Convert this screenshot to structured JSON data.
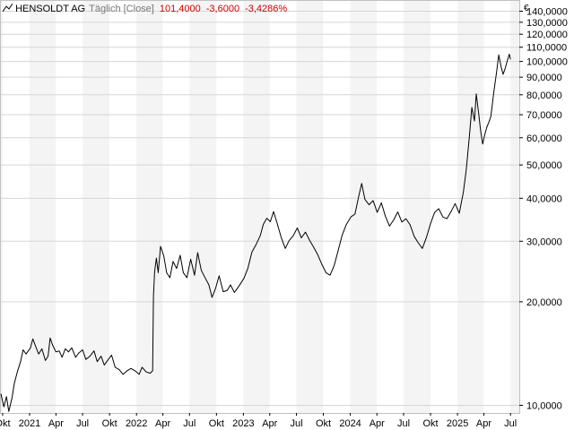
{
  "header": {
    "icon": "line-chart-icon",
    "instrument": "HENSOLDT AG",
    "subtitle": "Täglich [Close]",
    "last": "101,4000",
    "change": "-3,6000",
    "change_pct": "-3,4286%",
    "currency": "€",
    "change_color": "#cc0000"
  },
  "chart_data": {
    "type": "line",
    "title": "HENSOLDT AG",
    "yscale": "log",
    "ylim": [
      9.5,
      150
    ],
    "xlim": [
      "2020-09-25",
      "2025-07-31"
    ],
    "grid": true,
    "y_ticks": [
      {
        "v": 10,
        "label": "10,0000"
      },
      {
        "v": 20,
        "label": "20,0000"
      },
      {
        "v": 30,
        "label": "30,0000"
      },
      {
        "v": 40,
        "label": "40,0000"
      },
      {
        "v": 50,
        "label": "50,0000"
      },
      {
        "v": 60,
        "label": "60,0000"
      },
      {
        "v": 70,
        "label": "70,0000"
      },
      {
        "v": 80,
        "label": "80,0000"
      },
      {
        "v": 90,
        "label": "90,0000"
      },
      {
        "v": 100,
        "label": "100,0000"
      },
      {
        "v": 110,
        "label": "110,0000"
      },
      {
        "v": 120,
        "label": "120,0000"
      },
      {
        "v": 130,
        "label": "130,0000"
      },
      {
        "v": 140,
        "label": "140,0000"
      }
    ],
    "x_ticks": [
      {
        "d": "2020-10-01",
        "label": "Okt"
      },
      {
        "d": "2021-01-01",
        "label": "2021"
      },
      {
        "d": "2021-04-01",
        "label": "Apr"
      },
      {
        "d": "2021-07-01",
        "label": "Jul"
      },
      {
        "d": "2021-10-01",
        "label": "Okt"
      },
      {
        "d": "2022-01-01",
        "label": "2022"
      },
      {
        "d": "2022-04-01",
        "label": "Apr"
      },
      {
        "d": "2022-07-01",
        "label": "Jul"
      },
      {
        "d": "2022-10-01",
        "label": "Okt"
      },
      {
        "d": "2023-01-01",
        "label": "2023"
      },
      {
        "d": "2023-04-01",
        "label": "Apr"
      },
      {
        "d": "2023-07-01",
        "label": "Jul"
      },
      {
        "d": "2023-10-01",
        "label": "Okt"
      },
      {
        "d": "2024-01-01",
        "label": "2024"
      },
      {
        "d": "2024-04-01",
        "label": "Apr"
      },
      {
        "d": "2024-07-01",
        "label": "Jul"
      },
      {
        "d": "2024-10-01",
        "label": "Okt"
      },
      {
        "d": "2025-01-01",
        "label": "2025"
      },
      {
        "d": "2025-04-01",
        "label": "Apr"
      },
      {
        "d": "2025-07-01",
        "label": "Jul"
      }
    ],
    "series": [
      {
        "color": "#000000",
        "points": [
          [
            "2020-09-25",
            10.8
          ],
          [
            "2020-10-05",
            9.9
          ],
          [
            "2020-10-14",
            10.6
          ],
          [
            "2020-10-22",
            9.6
          ],
          [
            "2020-11-02",
            10.5
          ],
          [
            "2020-11-10",
            11.6
          ],
          [
            "2020-11-20",
            12.5
          ],
          [
            "2020-12-01",
            13.4
          ],
          [
            "2020-12-10",
            14.5
          ],
          [
            "2020-12-20",
            14.1
          ],
          [
            "2021-01-04",
            14.7
          ],
          [
            "2021-01-12",
            15.6
          ],
          [
            "2021-01-22",
            14.8
          ],
          [
            "2021-02-01",
            14.1
          ],
          [
            "2021-02-12",
            14.6
          ],
          [
            "2021-02-24",
            13.5
          ],
          [
            "2021-03-05",
            13.9
          ],
          [
            "2021-03-12",
            15.7
          ],
          [
            "2021-03-20",
            15.0
          ],
          [
            "2021-04-01",
            14.3
          ],
          [
            "2021-04-12",
            14.4
          ],
          [
            "2021-04-22",
            13.8
          ],
          [
            "2021-05-03",
            14.6
          ],
          [
            "2021-05-14",
            14.3
          ],
          [
            "2021-05-25",
            14.7
          ],
          [
            "2021-06-07",
            13.8
          ],
          [
            "2021-06-18",
            14.2
          ],
          [
            "2021-07-01",
            14.5
          ],
          [
            "2021-07-12",
            13.6
          ],
          [
            "2021-07-26",
            13.9
          ],
          [
            "2021-08-09",
            14.4
          ],
          [
            "2021-08-20",
            13.4
          ],
          [
            "2021-09-02",
            13.9
          ],
          [
            "2021-09-13",
            13.1
          ],
          [
            "2021-09-27",
            13.6
          ],
          [
            "2021-10-08",
            14.0
          ],
          [
            "2021-10-20",
            12.9
          ],
          [
            "2021-11-03",
            12.7
          ],
          [
            "2021-11-16",
            12.3
          ],
          [
            "2021-11-30",
            12.6
          ],
          [
            "2021-12-13",
            12.8
          ],
          [
            "2021-12-27",
            12.6
          ],
          [
            "2022-01-10",
            12.3
          ],
          [
            "2022-01-20",
            12.9
          ],
          [
            "2022-02-03",
            12.5
          ],
          [
            "2022-02-17",
            12.4
          ],
          [
            "2022-02-25",
            12.6
          ],
          [
            "2022-02-28",
            20.8
          ],
          [
            "2022-03-04",
            24.5
          ],
          [
            "2022-03-10",
            26.8
          ],
          [
            "2022-03-16",
            24.3
          ],
          [
            "2022-03-24",
            29.0
          ],
          [
            "2022-04-04",
            27.2
          ],
          [
            "2022-04-14",
            24.3
          ],
          [
            "2022-04-25",
            23.5
          ],
          [
            "2022-05-06",
            26.2
          ],
          [
            "2022-05-18",
            25.0
          ],
          [
            "2022-05-30",
            27.3
          ],
          [
            "2022-06-10",
            24.3
          ],
          [
            "2022-06-22",
            23.5
          ],
          [
            "2022-07-05",
            26.6
          ],
          [
            "2022-07-18",
            23.9
          ],
          [
            "2022-07-29",
            27.8
          ],
          [
            "2022-08-10",
            24.7
          ],
          [
            "2022-08-22",
            23.6
          ],
          [
            "2022-09-05",
            22.4
          ],
          [
            "2022-09-16",
            20.6
          ],
          [
            "2022-09-28",
            21.9
          ],
          [
            "2022-10-10",
            23.8
          ],
          [
            "2022-10-24",
            21.4
          ],
          [
            "2022-11-07",
            21.6
          ],
          [
            "2022-11-18",
            22.4
          ],
          [
            "2022-12-01",
            21.3
          ],
          [
            "2022-12-15",
            22.1
          ],
          [
            "2023-01-03",
            23.4
          ],
          [
            "2023-01-16",
            25.0
          ],
          [
            "2023-01-30",
            27.9
          ],
          [
            "2023-02-13",
            29.3
          ],
          [
            "2023-02-28",
            31.2
          ],
          [
            "2023-03-10",
            33.6
          ],
          [
            "2023-03-22",
            35.0
          ],
          [
            "2023-04-03",
            34.2
          ],
          [
            "2023-04-14",
            36.6
          ],
          [
            "2023-04-26",
            33.9
          ],
          [
            "2023-05-10",
            30.8
          ],
          [
            "2023-05-24",
            28.6
          ],
          [
            "2023-06-06",
            30.1
          ],
          [
            "2023-06-20",
            31.1
          ],
          [
            "2023-07-04",
            32.8
          ],
          [
            "2023-07-18",
            30.7
          ],
          [
            "2023-08-01",
            31.9
          ],
          [
            "2023-08-15",
            30.2
          ],
          [
            "2023-08-29",
            28.8
          ],
          [
            "2023-09-12",
            27.4
          ],
          [
            "2023-09-26",
            25.7
          ],
          [
            "2023-10-10",
            24.3
          ],
          [
            "2023-10-24",
            23.9
          ],
          [
            "2023-11-07",
            25.5
          ],
          [
            "2023-11-20",
            28.1
          ],
          [
            "2023-12-04",
            31.2
          ],
          [
            "2023-12-18",
            33.5
          ],
          [
            "2024-01-03",
            35.3
          ],
          [
            "2024-01-17",
            36.0
          ],
          [
            "2024-01-31",
            41.0
          ],
          [
            "2024-02-09",
            44.2
          ],
          [
            "2024-02-20",
            39.7
          ],
          [
            "2024-03-05",
            38.3
          ],
          [
            "2024-03-19",
            39.4
          ],
          [
            "2024-04-02",
            36.4
          ],
          [
            "2024-04-16",
            38.8
          ],
          [
            "2024-04-30",
            35.4
          ],
          [
            "2024-05-14",
            33.2
          ],
          [
            "2024-05-28",
            34.6
          ],
          [
            "2024-06-11",
            36.5
          ],
          [
            "2024-06-25",
            34.1
          ],
          [
            "2024-07-09",
            34.9
          ],
          [
            "2024-07-23",
            33.5
          ],
          [
            "2024-08-06",
            31.0
          ],
          [
            "2024-08-20",
            29.7
          ],
          [
            "2024-09-03",
            28.6
          ],
          [
            "2024-09-17",
            30.8
          ],
          [
            "2024-10-01",
            33.8
          ],
          [
            "2024-10-15",
            36.4
          ],
          [
            "2024-10-29",
            37.3
          ],
          [
            "2024-11-12",
            35.3
          ],
          [
            "2024-11-26",
            34.9
          ],
          [
            "2024-12-10",
            36.6
          ],
          [
            "2024-12-24",
            38.6
          ],
          [
            "2025-01-07",
            36.2
          ],
          [
            "2025-01-21",
            41.6
          ],
          [
            "2025-01-31",
            48.5
          ],
          [
            "2025-02-10",
            60.0
          ],
          [
            "2025-02-19",
            73.5
          ],
          [
            "2025-02-28",
            67.1
          ],
          [
            "2025-03-06",
            80.5
          ],
          [
            "2025-03-14",
            71.0
          ],
          [
            "2025-03-21",
            62.8
          ],
          [
            "2025-03-28",
            57.5
          ],
          [
            "2025-04-04",
            61.3
          ],
          [
            "2025-04-11",
            64.4
          ],
          [
            "2025-04-18",
            66.5
          ],
          [
            "2025-04-25",
            69.2
          ],
          [
            "2025-05-05",
            81.5
          ],
          [
            "2025-05-14",
            92.4
          ],
          [
            "2025-05-22",
            104.5
          ],
          [
            "2025-05-30",
            96.3
          ],
          [
            "2025-06-06",
            91.7
          ],
          [
            "2025-06-13",
            95.6
          ],
          [
            "2025-06-20",
            100.4
          ],
          [
            "2025-06-27",
            105.0
          ],
          [
            "2025-07-01",
            101.4
          ]
        ]
      }
    ]
  }
}
